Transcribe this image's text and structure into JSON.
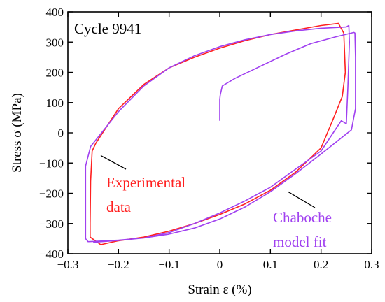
{
  "chart_data": {
    "type": "line",
    "xlabel": "Strain ε (%)",
    "ylabel": "Stress σ (MPa)",
    "xlim": [
      -0.3,
      0.3
    ],
    "ylim": [
      -400,
      400
    ],
    "x_ticks": [
      "−0.3",
      "−0.2",
      "−0.1",
      "0",
      "0.1",
      "0.2",
      "0.3"
    ],
    "y_ticks": [
      "−400",
      "−300",
      "−200",
      "−100",
      "0",
      "100",
      "200",
      "300",
      "400"
    ],
    "grid": false,
    "annotations": {
      "cycle": "Cycle 9941",
      "experimental": [
        "Experimental",
        "data"
      ],
      "model": [
        "Chaboche",
        "model fit"
      ]
    },
    "colors": {
      "experimental": "#ff2020",
      "model": "#a040f0",
      "axis": "#000000"
    },
    "series": [
      {
        "key": "experimental",
        "points": [
          [
            0.235,
            360
          ],
          [
            0.245,
            330
          ],
          [
            0.248,
            200
          ],
          [
            0.242,
            120
          ],
          [
            0.225,
            50
          ],
          [
            0.2,
            -50
          ],
          [
            0.15,
            -130
          ],
          [
            0.1,
            -190
          ],
          [
            0.05,
            -235
          ],
          [
            0.0,
            -270
          ],
          [
            -0.05,
            -300
          ],
          [
            -0.1,
            -325
          ],
          [
            -0.15,
            -345
          ],
          [
            -0.2,
            -357
          ],
          [
            -0.235,
            -370
          ],
          [
            -0.256,
            -345
          ],
          [
            -0.256,
            -300
          ],
          [
            -0.255,
            -160
          ],
          [
            -0.252,
            -60
          ],
          [
            -0.245,
            -35
          ],
          [
            -0.2,
            80
          ],
          [
            -0.15,
            160
          ],
          [
            -0.1,
            215
          ],
          [
            -0.05,
            250
          ],
          [
            0.0,
            280
          ],
          [
            0.05,
            305
          ],
          [
            0.1,
            325
          ],
          [
            0.15,
            340
          ],
          [
            0.2,
            355
          ],
          [
            0.235,
            362
          ]
        ]
      },
      {
        "key": "model",
        "points": [
          [
            0.0,
            40
          ],
          [
            0.0,
            110
          ],
          [
            0.001,
            125
          ],
          [
            0.005,
            155
          ],
          [
            0.03,
            180
          ],
          [
            0.08,
            220
          ],
          [
            0.13,
            260
          ],
          [
            0.18,
            295
          ],
          [
            0.23,
            318
          ],
          [
            0.265,
            332
          ],
          [
            0.267,
            330
          ],
          [
            0.268,
            250
          ],
          [
            0.268,
            80
          ],
          [
            0.26,
            10
          ],
          [
            0.2,
            -70
          ],
          [
            0.15,
            -135
          ],
          [
            0.1,
            -195
          ],
          [
            0.05,
            -245
          ],
          [
            0.0,
            -285
          ],
          [
            -0.05,
            -315
          ],
          [
            -0.1,
            -335
          ],
          [
            -0.15,
            -348
          ],
          [
            -0.2,
            -355
          ],
          [
            -0.26,
            -360
          ],
          [
            -0.265,
            -350
          ],
          [
            -0.265,
            -200
          ],
          [
            -0.265,
            -110
          ],
          [
            -0.255,
            -45
          ],
          [
            -0.2,
            70
          ],
          [
            -0.15,
            155
          ],
          [
            -0.1,
            215
          ],
          [
            -0.05,
            255
          ],
          [
            0.0,
            285
          ],
          [
            0.05,
            308
          ],
          [
            0.1,
            325
          ],
          [
            0.15,
            337
          ],
          [
            0.2,
            346
          ],
          [
            0.25,
            350
          ],
          [
            0.255,
            355
          ],
          [
            0.256,
            300
          ],
          [
            0.253,
            150
          ],
          [
            0.25,
            30
          ],
          [
            0.24,
            40
          ],
          [
            0.2,
            -60
          ],
          [
            0.15,
            -120
          ],
          [
            0.1,
            -180
          ],
          [
            0.05,
            -225
          ],
          [
            0.0,
            -265
          ],
          [
            -0.05,
            -300
          ],
          [
            -0.1,
            -330
          ],
          [
            -0.15,
            -348
          ],
          [
            -0.2,
            -356
          ],
          [
            -0.25,
            -362
          ]
        ]
      }
    ]
  }
}
